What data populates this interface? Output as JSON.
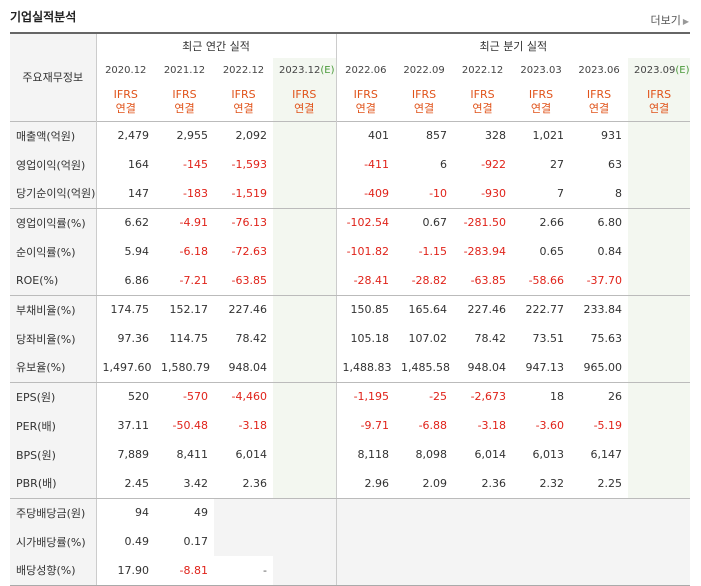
{
  "header": {
    "title": "기업실적분석",
    "more_label": "더보기"
  },
  "table": {
    "corner_label": "주요재무정보",
    "annual_group_label": "최근 연간 실적",
    "quarter_group_label": "최근 분기 실적",
    "annual_periods": [
      "2020.12",
      "2021.12",
      "2022.12",
      "2023.12"
    ],
    "quarter_periods": [
      "2022.06",
      "2022.09",
      "2022.12",
      "2023.03",
      "2023.06",
      "2023.09"
    ],
    "estimate_mark": "(E)",
    "ifrs_line1": "IFRS",
    "ifrs_line2": "연결",
    "rows": [
      {
        "label": "매출액(억원)",
        "a": [
          "2,479",
          "2,955",
          "2,092",
          ""
        ],
        "q": [
          "401",
          "857",
          "328",
          "1,021",
          "931",
          ""
        ]
      },
      {
        "label": "영업이익(억원)",
        "a": [
          "164",
          "-145",
          "-1,593",
          ""
        ],
        "q": [
          "-411",
          "6",
          "-922",
          "27",
          "63",
          ""
        ]
      },
      {
        "label": "당기순이익(억원)",
        "a": [
          "147",
          "-183",
          "-1,519",
          ""
        ],
        "q": [
          "-409",
          "-10",
          "-930",
          "7",
          "8",
          ""
        ]
      },
      {
        "label": "영업이익률(%)",
        "a": [
          "6.62",
          "-4.91",
          "-76.13",
          ""
        ],
        "q": [
          "-102.54",
          "0.67",
          "-281.50",
          "2.66",
          "6.80",
          ""
        ]
      },
      {
        "label": "순이익률(%)",
        "a": [
          "5.94",
          "-6.18",
          "-72.63",
          ""
        ],
        "q": [
          "-101.82",
          "-1.15",
          "-283.94",
          "0.65",
          "0.84",
          ""
        ]
      },
      {
        "label": "ROE(%)",
        "a": [
          "6.86",
          "-7.21",
          "-63.85",
          ""
        ],
        "q": [
          "-28.41",
          "-28.82",
          "-63.85",
          "-58.66",
          "-37.70",
          ""
        ]
      },
      {
        "label": "부채비율(%)",
        "a": [
          "174.75",
          "152.17",
          "227.46",
          ""
        ],
        "q": [
          "150.85",
          "165.64",
          "227.46",
          "222.77",
          "233.84",
          ""
        ]
      },
      {
        "label": "당좌비율(%)",
        "a": [
          "97.36",
          "114.75",
          "78.42",
          ""
        ],
        "q": [
          "105.18",
          "107.02",
          "78.42",
          "73.51",
          "75.63",
          ""
        ]
      },
      {
        "label": "유보율(%)",
        "a": [
          "1,497.60",
          "1,580.79",
          "948.04",
          ""
        ],
        "q": [
          "1,488.83",
          "1,485.58",
          "948.04",
          "947.13",
          "965.00",
          ""
        ]
      },
      {
        "label": "EPS(원)",
        "a": [
          "520",
          "-570",
          "-4,460",
          ""
        ],
        "q": [
          "-1,195",
          "-25",
          "-2,673",
          "18",
          "26",
          ""
        ]
      },
      {
        "label": "PER(배)",
        "a": [
          "37.11",
          "-50.48",
          "-3.18",
          ""
        ],
        "q": [
          "-9.71",
          "-6.88",
          "-3.18",
          "-3.60",
          "-5.19",
          ""
        ]
      },
      {
        "label": "BPS(원)",
        "a": [
          "7,889",
          "8,411",
          "6,014",
          ""
        ],
        "q": [
          "8,118",
          "8,098",
          "6,014",
          "6,013",
          "6,147",
          ""
        ]
      },
      {
        "label": "PBR(배)",
        "a": [
          "2.45",
          "3.42",
          "2.36",
          ""
        ],
        "q": [
          "2.96",
          "2.09",
          "2.36",
          "2.32",
          "2.25",
          ""
        ]
      },
      {
        "label": "주당배당금(원)",
        "a": [
          "94",
          "49",
          "",
          ""
        ],
        "q": [
          "",
          "",
          "",
          "",
          "",
          ""
        ]
      },
      {
        "label": "시가배당률(%)",
        "a": [
          "0.49",
          "0.17",
          "",
          ""
        ],
        "q": [
          "",
          "",
          "",
          "",
          "",
          ""
        ]
      },
      {
        "label": "배당성향(%)",
        "a": [
          "17.90",
          "-8.81",
          "-",
          ""
        ],
        "q": [
          "",
          "",
          "",
          "",
          "",
          ""
        ]
      }
    ]
  }
}
